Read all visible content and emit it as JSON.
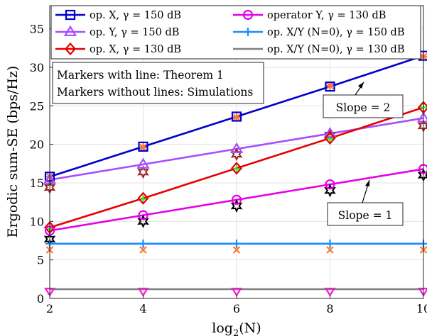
{
  "chart_data": {
    "type": "line",
    "xlabel": "log",
    "xlabel_sub": "2",
    "xlabel_arg": "(N)",
    "ylabel": "Ergodic sum-SE (bps/Hz)",
    "xlim": [
      2,
      10
    ],
    "ylim": [
      0,
      38
    ],
    "xticks": [
      "2",
      "4",
      "6",
      "8",
      "10"
    ],
    "yticks": [
      "0",
      "5",
      "10",
      "15",
      "20",
      "25",
      "30",
      "35"
    ],
    "grid": true,
    "x": [
      2,
      4,
      6,
      8,
      10
    ],
    "series": [
      {
        "name": "op. X, γ = 150 dB",
        "color": "#0000cc",
        "marker": "square",
        "values": [
          15.8,
          19.7,
          23.6,
          27.5,
          31.5
        ]
      },
      {
        "name": "op. Y, γ = 150 dB",
        "color": "#a64dff",
        "marker": "triangle-up",
        "values": [
          15.4,
          17.4,
          19.4,
          21.4,
          23.4
        ]
      },
      {
        "name": "op. X, γ = 130 dB",
        "color": "#e60000",
        "marker": "diamond",
        "values": [
          9.2,
          13.0,
          16.9,
          20.8,
          24.8
        ]
      },
      {
        "name": "operator Y, γ = 130 dB",
        "color": "#e600e6",
        "marker": "circle",
        "values": [
          8.8,
          10.8,
          12.8,
          14.8,
          16.8
        ]
      },
      {
        "name": "op. X/Y (N=0), γ = 150 dB",
        "color": "#1a8cff",
        "marker": "plus",
        "values": [
          7.1,
          7.1,
          7.1,
          7.1,
          7.1
        ]
      },
      {
        "name": "op. X/Y (N=0), γ = 130 dB",
        "color": "#808080",
        "marker": "none",
        "values": [
          1.2,
          1.2,
          1.2,
          1.2,
          1.2
        ]
      }
    ],
    "simulations": [
      {
        "marker": "asterisk",
        "color": "#ff7733",
        "values": [
          15.8,
          19.6,
          23.5,
          27.6,
          31.4
        ]
      },
      {
        "marker": "hexagram",
        "color": "#992222",
        "values": [
          14.4,
          16.4,
          18.7,
          21.2,
          22.4
        ]
      },
      {
        "marker": "plus",
        "color": "#33ee33",
        "values": [
          9.0,
          12.9,
          16.8,
          20.7,
          24.8
        ]
      },
      {
        "marker": "hexagram",
        "color": "#000000",
        "values": [
          7.7,
          10.0,
          12.0,
          14.0,
          16.0
        ]
      },
      {
        "marker": "x",
        "color": "#ff7733",
        "values": [
          6.3,
          6.3,
          6.3,
          6.3,
          6.3
        ]
      },
      {
        "marker": "triangle-down",
        "color": "#ee22cc",
        "values": [
          0.9,
          0.9,
          0.9,
          0.9,
          0.9
        ]
      }
    ],
    "notes": {
      "line1": "Markers with line: Theorem 1",
      "line2": "Markers without lines: Simulations"
    },
    "annotations": [
      {
        "text": "Slope = 2",
        "at": [
          8.8,
          29.5
        ]
      },
      {
        "text": "Slope = 1",
        "at": [
          8.6,
          15.7
        ]
      }
    ]
  }
}
